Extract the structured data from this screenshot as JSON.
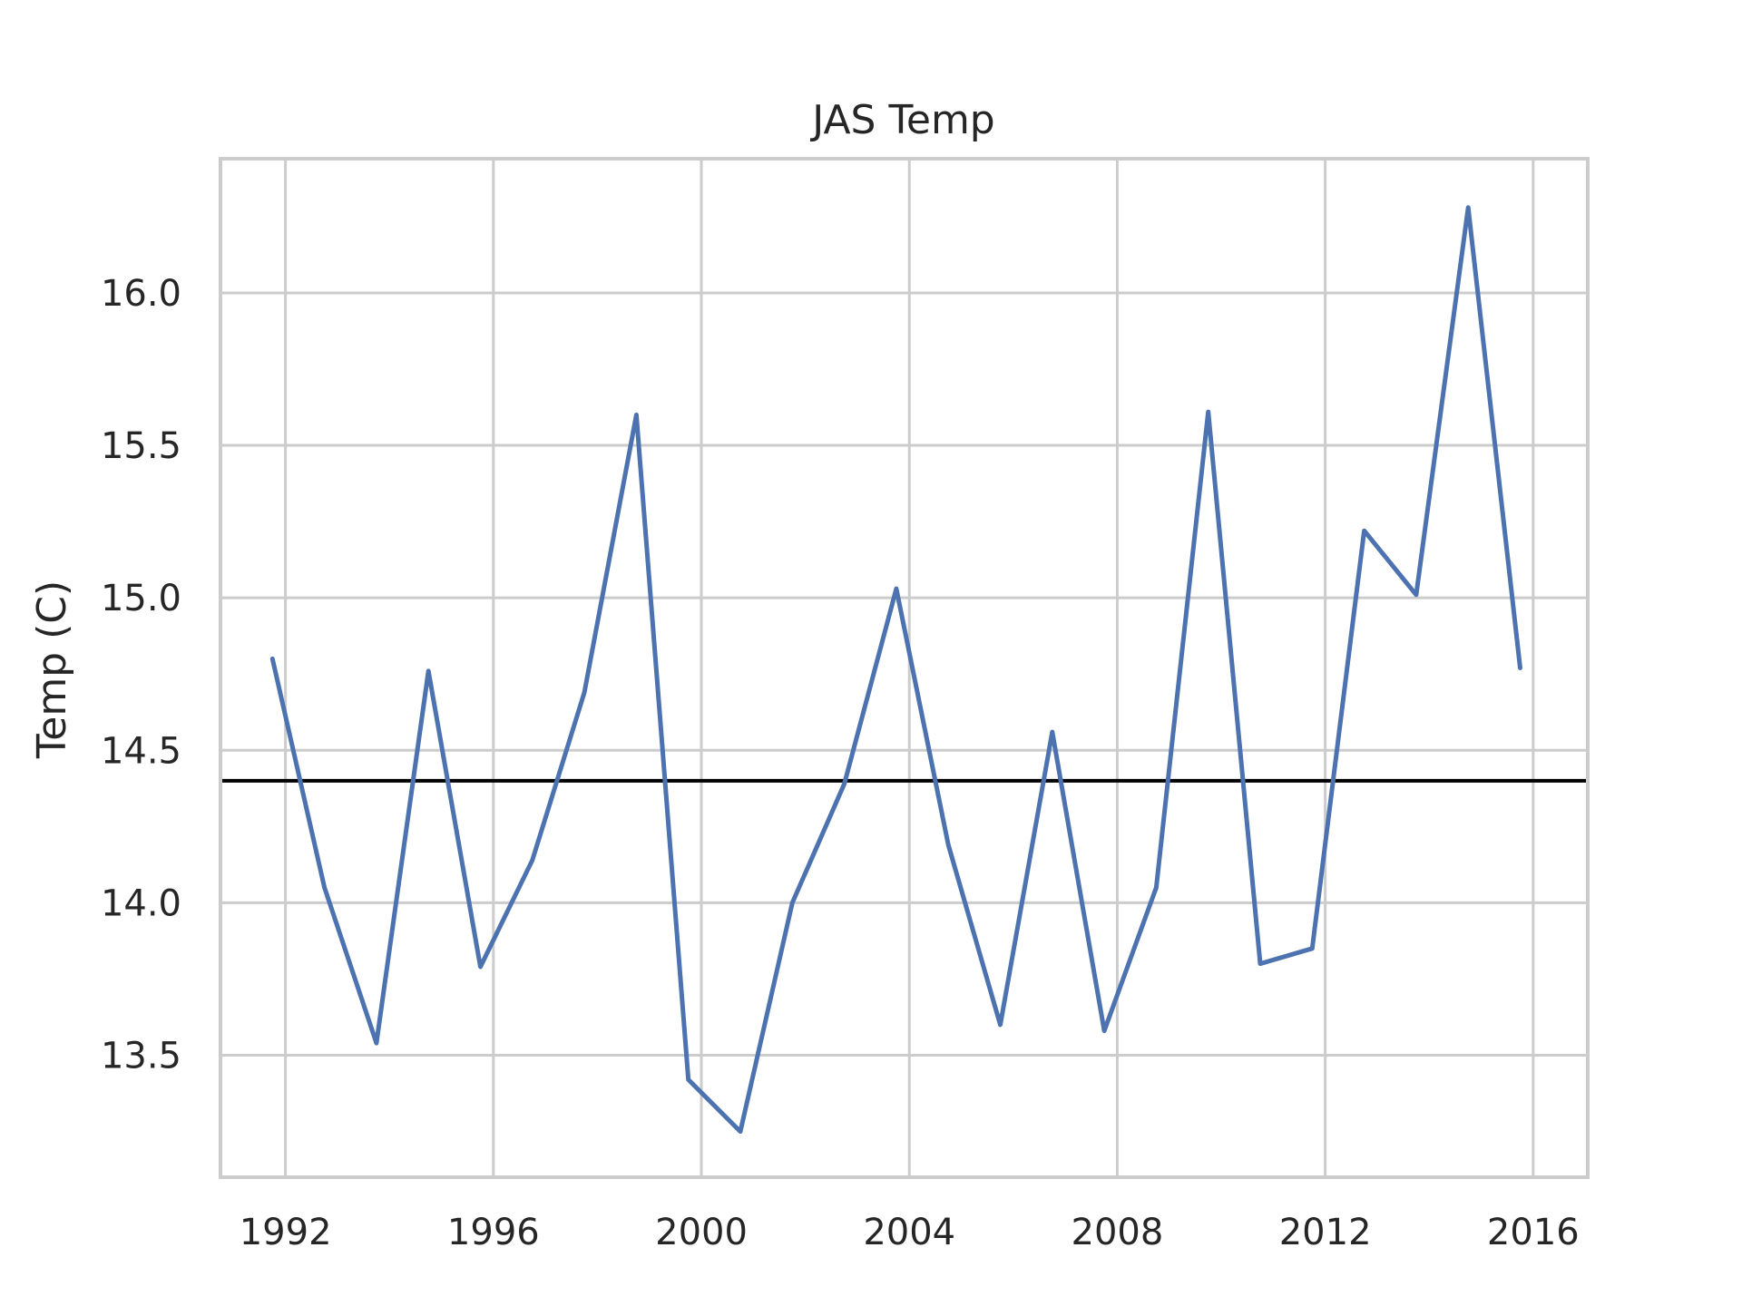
{
  "chart_data": {
    "type": "line",
    "title": "JAS Temp",
    "xlabel": "",
    "ylabel": "Temp (C)",
    "xlim": [
      1990.75,
      2017.05
    ],
    "ylim": [
      13.1,
      16.44
    ],
    "x_ticks": [
      1992,
      1996,
      2000,
      2004,
      2008,
      2012,
      2016
    ],
    "y_ticks": [
      13.5,
      14.0,
      14.5,
      15.0,
      15.5,
      16.0
    ],
    "y_tick_labels": [
      "13.5",
      "14.0",
      "14.5",
      "15.0",
      "15.5",
      "16.0"
    ],
    "grid": true,
    "reference_line": 14.4,
    "series": [
      {
        "color": "#4c72b0",
        "x": [
          1991.75,
          1992.75,
          1993.75,
          1994.75,
          1995.75,
          1996.75,
          1997.75,
          1998.75,
          1999.75,
          2000.75,
          2001.75,
          2002.75,
          2003.75,
          2004.75,
          2005.75,
          2006.75,
          2007.75,
          2008.75,
          2009.75,
          2010.75,
          2011.75,
          2012.75,
          2013.75,
          2014.75,
          2015.75
        ],
        "values": [
          14.8,
          14.05,
          13.54,
          14.76,
          13.79,
          14.14,
          14.69,
          15.6,
          13.42,
          13.25,
          14.0,
          14.39,
          15.03,
          14.19,
          13.6,
          14.56,
          13.58,
          14.05,
          15.61,
          13.8,
          13.85,
          15.22,
          15.01,
          16.28,
          14.77
        ]
      }
    ],
    "reference_color": "#000000"
  }
}
